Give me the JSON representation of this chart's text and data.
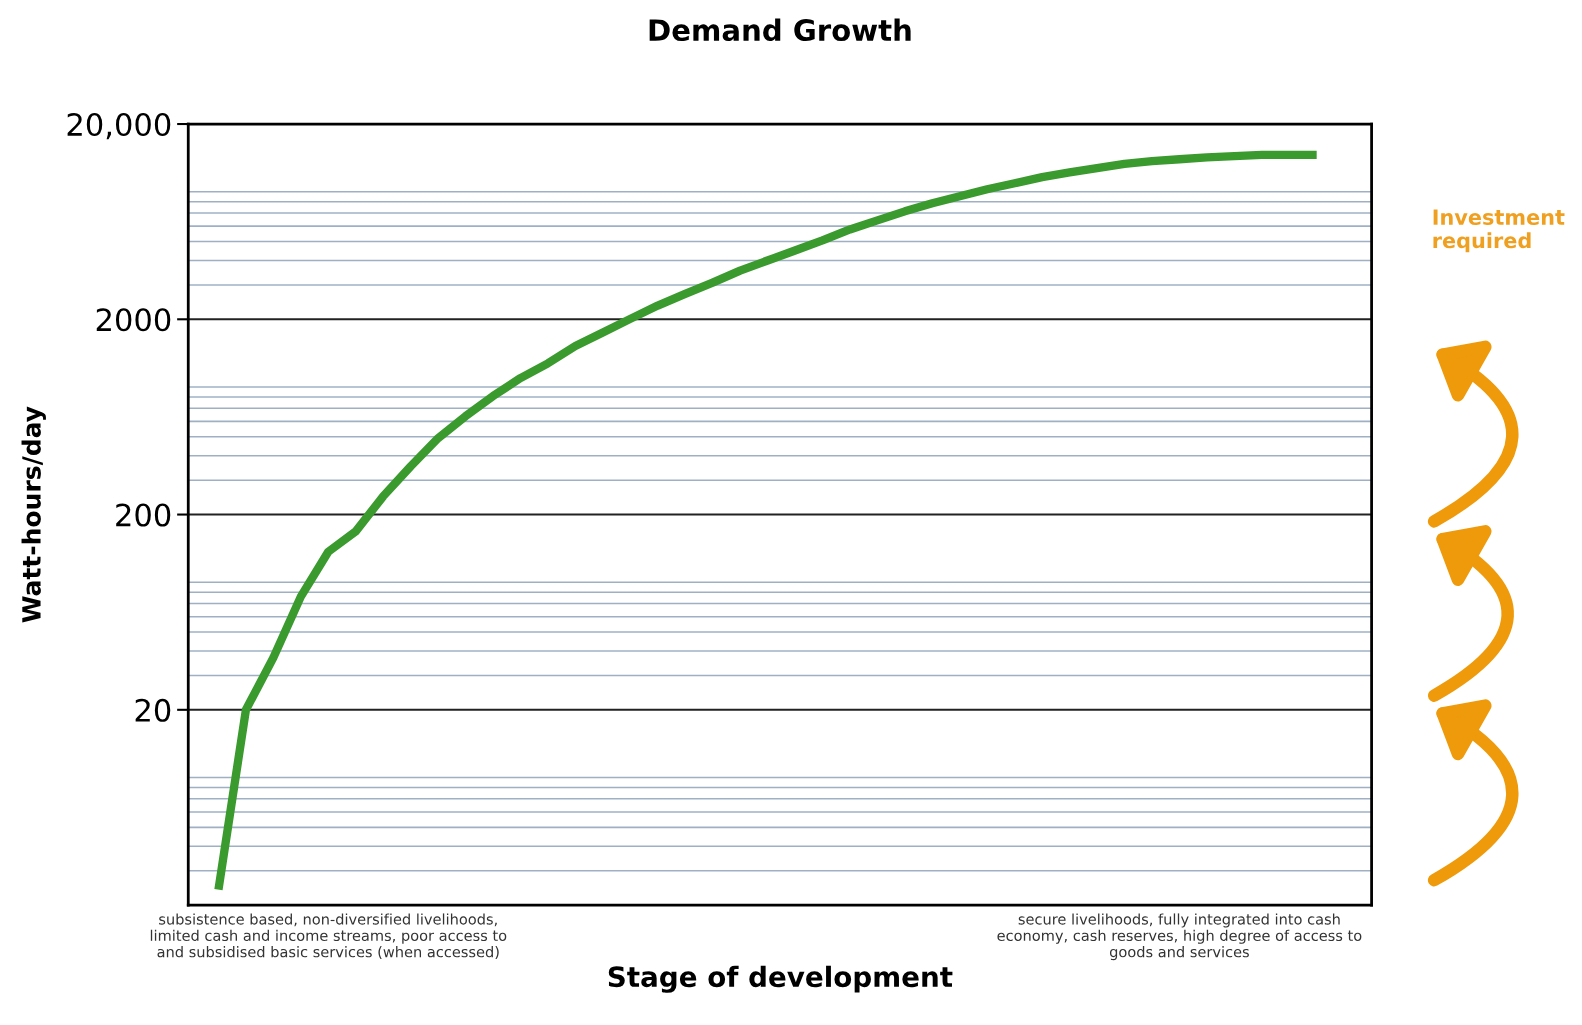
{
  "chart_data": {
    "type": "line",
    "title": "Demand Growth",
    "xlabel": "Stage of development",
    "ylabel": "Watt-hours/day",
    "categories": [
      null,
      null,
      null,
      null,
      "subsistence based, non-diversified livelihoods,\nlimited cash and income streams, poor access to\nand subsidised basic services (when accessed)",
      null,
      null,
      null,
      null,
      null,
      null,
      null,
      null,
      null,
      null,
      null,
      null,
      null,
      null,
      null,
      null,
      null,
      null,
      null,
      null,
      null,
      null,
      null,
      null,
      null,
      null,
      null,
      null,
      null,
      null,
      "secure livelihoods, fully integrated into cash\neconomy, cash reserves, high degree of access to\ngoods and services",
      null,
      null,
      null,
      null,
      null
    ],
    "series": [
      {
        "color": "#3a9a2e",
        "values": [
          2.4,
          20,
          37,
          76,
          129,
          164,
          248,
          353,
          492,
          638,
          809,
          1000,
          1190,
          1460,
          1710,
          2010,
          2350,
          2700,
          3080,
          3550,
          4000,
          4500,
          5070,
          5770,
          6420,
          7140,
          7850,
          8530,
          9270,
          9950,
          10700,
          11300,
          11900,
          12500,
          12900,
          13200,
          13500,
          13700,
          13900,
          13900,
          13900
        ]
      }
    ],
    "log": "y",
    "ylim": [
      2,
      20000
    ],
    "yticks": [
      20,
      200,
      2000,
      {
        "value": 20000,
        "label": "20,000"
      }
    ],
    "grid": "y",
    "annotations": [
      "Investment required"
    ]
  }
}
